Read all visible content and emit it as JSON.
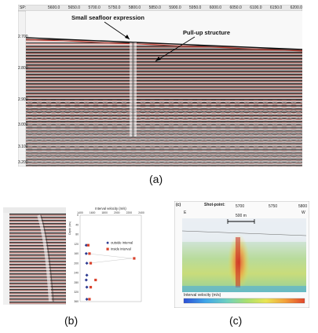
{
  "figure_a": {
    "label": "(a)",
    "sp_label": "SP:",
    "top_ticks": [
      "5600.0",
      "5650.0",
      "5700.0",
      "5750.0",
      "5800.0",
      "5850.0",
      "5900.0",
      "5950.0",
      "6000.0",
      "6050.0",
      "6100.0",
      "6150.0",
      "6200.0"
    ],
    "left_ticks": [
      "2.700",
      "2.800",
      "2.900",
      "3.000",
      "3.100",
      "3.200"
    ],
    "annotation_seafloor": "Small seafloor expression",
    "annotation_pullup": "Pull-up structure"
  },
  "figure_b": {
    "label": "(b)",
    "chart_data": {
      "type": "scatter",
      "title": "Interval velocity (m/s)",
      "ylabel": "Depth (ms)",
      "x_ticks": [
        "1400",
        "1600",
        "1800",
        "2000",
        "2200",
        "2400"
      ],
      "y_ticks": [
        "0",
        "40",
        "80",
        "120",
        "160",
        "200",
        "240",
        "280",
        "320",
        "360"
      ],
      "xlim": [
        1400,
        2400
      ],
      "ylim": [
        0,
        360
      ],
      "series": [
        {
          "name": "outside interval",
          "color": "#2b3990",
          "marker": "diamond",
          "points": [
            [
              1500,
              125
            ],
            [
              1500,
              160
            ],
            [
              1510,
              200
            ],
            [
              1510,
              250
            ],
            [
              1500,
              270
            ],
            [
              1510,
              300
            ],
            [
              1510,
              350
            ]
          ]
        },
        {
          "name": "inside interval",
          "color": "#d9412b",
          "marker": "square",
          "points": [
            [
              1500,
              125
            ],
            [
              1520,
              160
            ],
            [
              2250,
              180
            ],
            [
              1540,
              200
            ],
            [
              1620,
              270
            ],
            [
              1540,
              300
            ],
            [
              1520,
              350
            ]
          ]
        }
      ],
      "legend": [
        "outside interval",
        "inside interval"
      ]
    }
  },
  "figure_c": {
    "label": "(c)",
    "panel_tag": "(c)",
    "shotpoint_label": "Shot-point:",
    "shotpoint_ticks": [
      "5700",
      "5750",
      "5800"
    ],
    "west_east_left": "E",
    "west_east_right": "W",
    "scale_bar": "500 m",
    "colorbar_title": "Interval velocity (m/s)",
    "colorbar_stops": [
      "#2b4fd6",
      "#3fa6e8",
      "#6fd1c0",
      "#a9df6f",
      "#e9e552",
      "#f3a03a",
      "#e2462b"
    ]
  }
}
